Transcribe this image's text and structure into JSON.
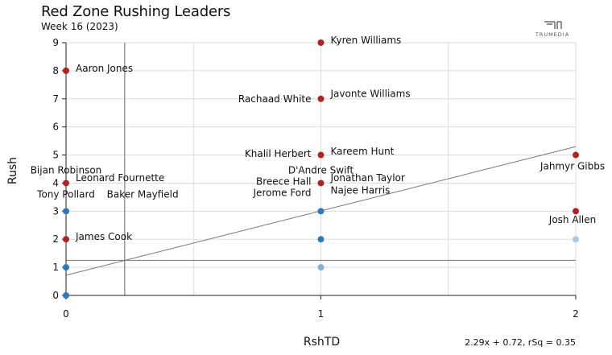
{
  "chart_data": {
    "type": "scatter",
    "title": "Red Zone Rushing Leaders",
    "subtitle": "Week 16 (2023)",
    "xlabel": "RshTD",
    "ylabel": "Rush",
    "xlim": [
      0,
      2
    ],
    "ylim": [
      0,
      9
    ],
    "x_ticks": [
      0,
      1,
      2
    ],
    "y_ticks": [
      0,
      1,
      2,
      3,
      4,
      5,
      6,
      7,
      8,
      9
    ],
    "grid": true,
    "reference_lines": {
      "vertical_x": 0.23,
      "horizontal_y": 1.25
    },
    "regression": {
      "slope": 2.29,
      "intercept": 0.72,
      "label": "2.29x + 0.72, rSq = 0.35"
    },
    "colors": {
      "labeled": "#b22222",
      "unlabeled": "#2b7bb9",
      "light": "#7fb2d6",
      "lighter": "#a8cbe8"
    },
    "points": [
      {
        "x": 0,
        "y": 8,
        "kind": "labeled"
      },
      {
        "x": 0,
        "y": 4,
        "kind": "labeled"
      },
      {
        "x": 0,
        "y": 3,
        "kind": "unlabeled"
      },
      {
        "x": 0,
        "y": 2,
        "kind": "labeled"
      },
      {
        "x": 0,
        "y": 1,
        "kind": "unlabeled"
      },
      {
        "x": 0,
        "y": 0,
        "kind": "unlabeled"
      },
      {
        "x": 1,
        "y": 9,
        "kind": "labeled"
      },
      {
        "x": 1,
        "y": 7,
        "kind": "labeled"
      },
      {
        "x": 1,
        "y": 5,
        "kind": "labeled"
      },
      {
        "x": 1,
        "y": 4,
        "kind": "labeled"
      },
      {
        "x": 1,
        "y": 3,
        "kind": "unlabeled"
      },
      {
        "x": 1,
        "y": 2,
        "kind": "unlabeled"
      },
      {
        "x": 1,
        "y": 1,
        "kind": "light"
      },
      {
        "x": 2,
        "y": 5,
        "kind": "labeled"
      },
      {
        "x": 2,
        "y": 3,
        "kind": "labeled"
      },
      {
        "x": 2,
        "y": 2,
        "kind": "lighter"
      }
    ],
    "labels": [
      {
        "text": "Aaron Jones",
        "x": 0,
        "y": 8,
        "pos": "right"
      },
      {
        "text": "Bijan Robinson",
        "x": 0,
        "y": 4.45,
        "pos": "center"
      },
      {
        "text": "Leonard Fournette",
        "x": 0,
        "y": 4.1,
        "pos": "right"
      },
      {
        "text": "Tony Pollard",
        "x": 0,
        "y": 3.6,
        "pos": "center"
      },
      {
        "text": "Baker Mayfield",
        "x": 0.16,
        "y": 3.6,
        "pos": "right-plain"
      },
      {
        "text": "James Cook",
        "x": 0,
        "y": 2,
        "pos": "right"
      },
      {
        "text": "Kyren Williams",
        "x": 1,
        "y": 9,
        "pos": "right"
      },
      {
        "text": "Rachaad White",
        "x": 1,
        "y": 7,
        "pos": "left"
      },
      {
        "text": "Javonte Williams",
        "x": 1,
        "y": 7.1,
        "pos": "right"
      },
      {
        "text": "Khalil Herbert",
        "x": 1,
        "y": 5.05,
        "pos": "left"
      },
      {
        "text": "Kareem Hunt",
        "x": 1,
        "y": 5.05,
        "pos": "right"
      },
      {
        "text": "D'Andre Swift",
        "x": 1,
        "y": 4.45,
        "pos": "center"
      },
      {
        "text": "Breece Hall",
        "x": 1,
        "y": 4.05,
        "pos": "left"
      },
      {
        "text": "Jonathan Taylor",
        "x": 1,
        "y": 4.1,
        "pos": "right"
      },
      {
        "text": "Jerome Ford",
        "x": 1,
        "y": 3.65,
        "pos": "left"
      },
      {
        "text": "Najee Harris",
        "x": 1,
        "y": 3.65,
        "pos": "right"
      },
      {
        "text": "Jahmyr Gibbs",
        "x": 2,
        "y": 4.6,
        "pos": "center-left"
      },
      {
        "text": "Josh Allen",
        "x": 2,
        "y": 2.7,
        "pos": "center-left"
      }
    ]
  },
  "brand": {
    "logo_text": "TRUMEDIA"
  }
}
